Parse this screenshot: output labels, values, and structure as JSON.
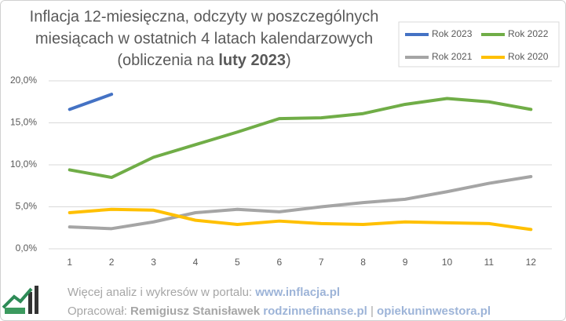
{
  "chart_data": {
    "type": "line",
    "title_lines": [
      "Inflacja 12-miesięczna,  odczyty w poszczególnych",
      "miesiącach  w ostatnich 4 latach kalendarzowych"
    ],
    "title_line3": [
      "(obliczenia  na",
      "luty 2023",
      ")"
    ],
    "categories": [
      "1",
      "2",
      "3",
      "4",
      "5",
      "6",
      "7",
      "8",
      "9",
      "10",
      "11",
      "12"
    ],
    "series": [
      {
        "name": "Rok 2023",
        "color": "#4472c4",
        "values": [
          16.6,
          18.4,
          null,
          null,
          null,
          null,
          null,
          null,
          null,
          null,
          null,
          null
        ]
      },
      {
        "name": "Rok 2022",
        "color": "#70ad47",
        "values": [
          9.4,
          8.5,
          10.9,
          12.4,
          13.9,
          15.5,
          15.6,
          16.1,
          17.2,
          17.9,
          17.5,
          16.6
        ]
      },
      {
        "name": "Rok 2021",
        "color": "#a5a5a5",
        "values": [
          2.6,
          2.4,
          3.2,
          4.3,
          4.7,
          4.4,
          5.0,
          5.5,
          5.9,
          6.8,
          7.8,
          8.6
        ]
      },
      {
        "name": "Rok 2020",
        "color": "#ffc000",
        "values": [
          4.3,
          4.7,
          4.6,
          3.4,
          2.9,
          3.3,
          3.0,
          2.9,
          3.2,
          3.1,
          3.0,
          2.3
        ]
      }
    ],
    "ylim": [
      0,
      20
    ],
    "yticks": [
      {
        "value": 0,
        "label": "0,0%"
      },
      {
        "value": 5,
        "label": "5,0%"
      },
      {
        "value": 10,
        "label": "10,0%"
      },
      {
        "value": 15,
        "label": "15,0%"
      },
      {
        "value": 20,
        "label": "20,0%"
      }
    ],
    "grid": true,
    "legend": "upper right"
  },
  "footer": {
    "line1": [
      "Więcej analiz i wykresów w portalu:",
      "www.inflacja.pl"
    ],
    "line2": [
      "Opracował:",
      "Remigiusz Stanisławek",
      "rodzinnefinanse.pl",
      "|",
      "opiekuninwestora.pl"
    ]
  }
}
